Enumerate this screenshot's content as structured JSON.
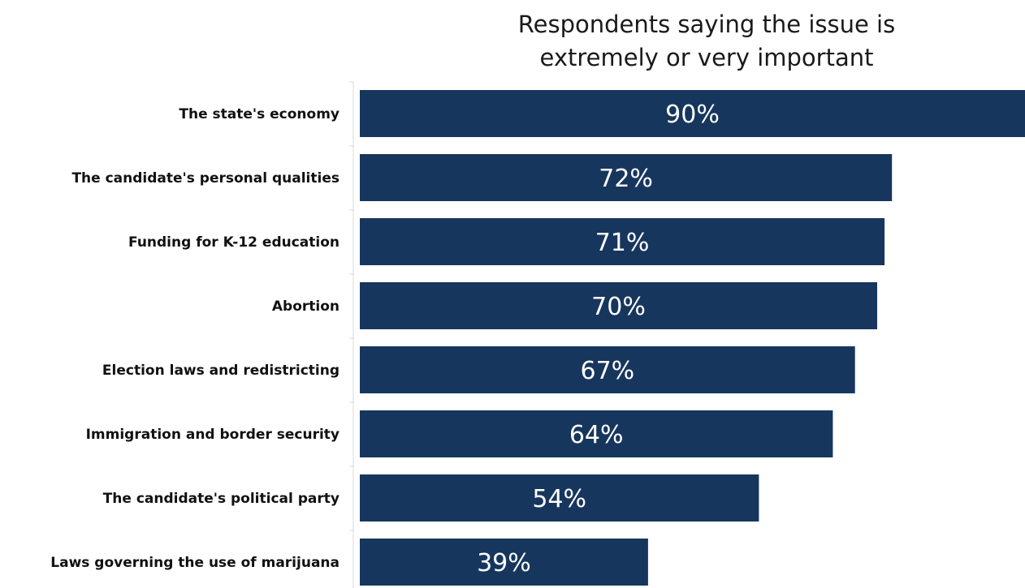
{
  "chart_data": {
    "type": "bar",
    "orientation": "horizontal",
    "title_lines": [
      "Respondents saying the issue is",
      "extremely or very important"
    ],
    "categories": [
      "The state's economy",
      "The candidate's personal qualities",
      "Funding for K-12 education",
      "Abortion",
      "Election laws and redistricting",
      "Immigration and border security",
      "The candidate's political party",
      "Laws governing the use of marijuana"
    ],
    "values": [
      90,
      72,
      71,
      70,
      67,
      64,
      54,
      39
    ],
    "value_labels": [
      "90%",
      "72%",
      "71%",
      "70%",
      "67%",
      "64%",
      "54%",
      "39%"
    ],
    "xlim": [
      0,
      90
    ],
    "bar_color": "#17365d",
    "grid": false
  }
}
